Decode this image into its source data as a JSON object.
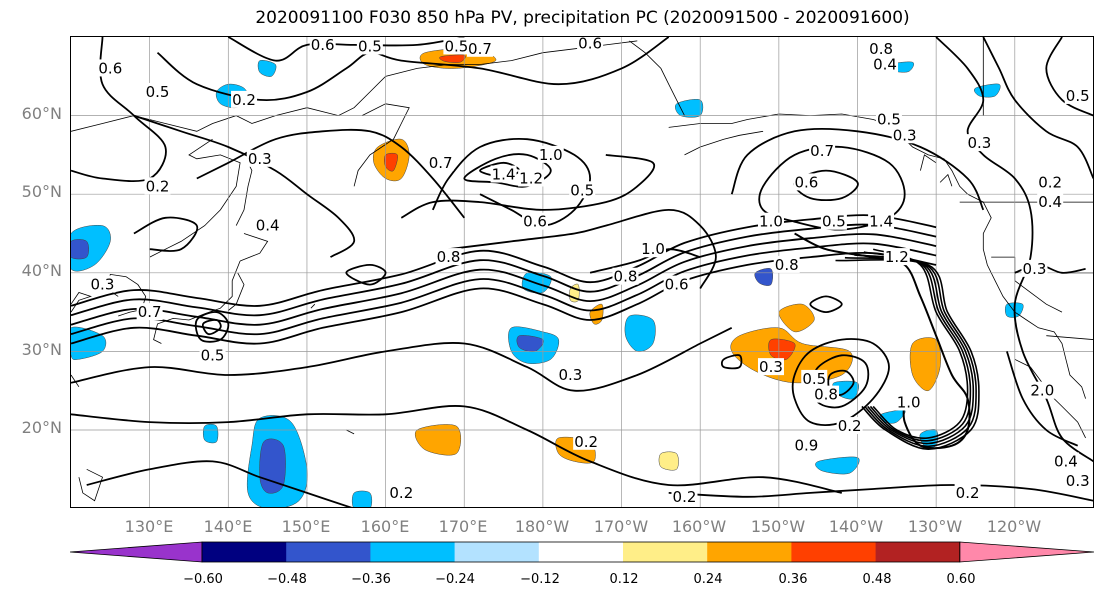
{
  "title": "2020091100 F030 850 hPa PV, precipitation PC (2020091500 - 2020091600)",
  "lat_labels": [
    "60°N",
    "50°N",
    "40°N",
    "30°N",
    "20°N"
  ],
  "lon_labels": [
    "130°E",
    "140°E",
    "150°E",
    "160°E",
    "170°E",
    "180°W",
    "170°W",
    "160°W",
    "150°W",
    "140°W",
    "130°W",
    "120°W"
  ],
  "colorbar": {
    "colors": [
      "#9933cc",
      "#000080",
      "#3355cc",
      "#00bfff",
      "#b3e2ff",
      "#ffffff",
      "#ffee88",
      "#ffa500",
      "#ff4000",
      "#b22222",
      "#ff88aa"
    ],
    "ticks": [
      "−0.60",
      "−0.48",
      "−0.36",
      "−0.24",
      "−0.12",
      "0.12",
      "0.24",
      "0.36",
      "0.48",
      "0.60"
    ]
  },
  "contour_labels": [
    {
      "text": "0.6",
      "lon": 152,
      "lat": 69
    },
    {
      "text": "0.5",
      "lon": 158,
      "lat": 68.8
    },
    {
      "text": "0.5",
      "lon": 169,
      "lat": 68.8
    },
    {
      "text": "0.7",
      "lon": 172,
      "lat": 68.5
    },
    {
      "text": "0.6",
      "lon": 186,
      "lat": 69.2
    },
    {
      "text": "0.8",
      "lon": 223,
      "lat": 68.5
    },
    {
      "text": "0.4",
      "lon": 223.5,
      "lat": 66.5
    },
    {
      "text": "0.6",
      "lon": 125,
      "lat": 66
    },
    {
      "text": "0.5",
      "lon": 131,
      "lat": 63
    },
    {
      "text": "0.2",
      "lon": 142,
      "lat": 62
    },
    {
      "text": "0.3",
      "lon": 144,
      "lat": 54.5
    },
    {
      "text": "0.2",
      "lon": 131,
      "lat": 51
    },
    {
      "text": "0.4",
      "lon": 145,
      "lat": 46
    },
    {
      "text": "0.3",
      "lon": 124,
      "lat": 38.5
    },
    {
      "text": "0.7",
      "lon": 130,
      "lat": 35
    },
    {
      "text": "0.5",
      "lon": 138,
      "lat": 29.5
    },
    {
      "text": "0.7",
      "lon": 167,
      "lat": 54
    },
    {
      "text": "1.4",
      "lon": 175,
      "lat": 52.5
    },
    {
      "text": "1.2",
      "lon": 178.5,
      "lat": 52
    },
    {
      "text": "1.0",
      "lon": 181,
      "lat": 55
    },
    {
      "text": "0.5",
      "lon": 185,
      "lat": 50.5
    },
    {
      "text": "0.6",
      "lon": 179,
      "lat": 46.5
    },
    {
      "text": "0.8",
      "lon": 168,
      "lat": 42
    },
    {
      "text": "1.0",
      "lon": 194,
      "lat": 43
    },
    {
      "text": "0.8",
      "lon": 190.5,
      "lat": 39.5
    },
    {
      "text": "0.6",
      "lon": 197,
      "lat": 38.5
    },
    {
      "text": "0.3",
      "lon": 183.5,
      "lat": 27
    },
    {
      "text": "0.2",
      "lon": 185.5,
      "lat": 18.5
    },
    {
      "text": "0.2",
      "lon": 162,
      "lat": 12
    },
    {
      "text": "0.2",
      "lon": 198,
      "lat": 11.5
    },
    {
      "text": "0.7",
      "lon": 215.5,
      "lat": 55.5
    },
    {
      "text": "0.6",
      "lon": 213.5,
      "lat": 51.5
    },
    {
      "text": "0.5",
      "lon": 217,
      "lat": 46.5
    },
    {
      "text": "1.0",
      "lon": 209,
      "lat": 46.5
    },
    {
      "text": "1.4",
      "lon": 223,
      "lat": 46.5
    },
    {
      "text": "0.8",
      "lon": 211,
      "lat": 41
    },
    {
      "text": "1.2",
      "lon": 225,
      "lat": 42
    },
    {
      "text": "0.3",
      "lon": 209,
      "lat": 28
    },
    {
      "text": "0.5",
      "lon": 214.5,
      "lat": 26.5
    },
    {
      "text": "0.8",
      "lon": 216,
      "lat": 24.5
    },
    {
      "text": "0.2",
      "lon": 219,
      "lat": 20.5
    },
    {
      "text": "0.9",
      "lon": 213.5,
      "lat": 18
    },
    {
      "text": "1.0",
      "lon": 226.5,
      "lat": 23.5
    },
    {
      "text": "0.3",
      "lon": 226,
      "lat": 57.5
    },
    {
      "text": "0.5",
      "lon": 224,
      "lat": 59.5
    },
    {
      "text": "0.3",
      "lon": 235.5,
      "lat": 56.5
    },
    {
      "text": "0.2",
      "lon": 244.5,
      "lat": 51.5
    },
    {
      "text": "0.4",
      "lon": 244.5,
      "lat": 49
    },
    {
      "text": "0.5",
      "lon": 248,
      "lat": 62.5
    },
    {
      "text": "0.3",
      "lon": 242.5,
      "lat": 40.5
    },
    {
      "text": "2.0",
      "lon": 243.5,
      "lat": 25
    },
    {
      "text": "0.4",
      "lon": 246.5,
      "lat": 16
    },
    {
      "text": "0.3",
      "lon": 248,
      "lat": 13.5
    },
    {
      "text": "0.2",
      "lon": 234,
      "lat": 12
    }
  ]
}
